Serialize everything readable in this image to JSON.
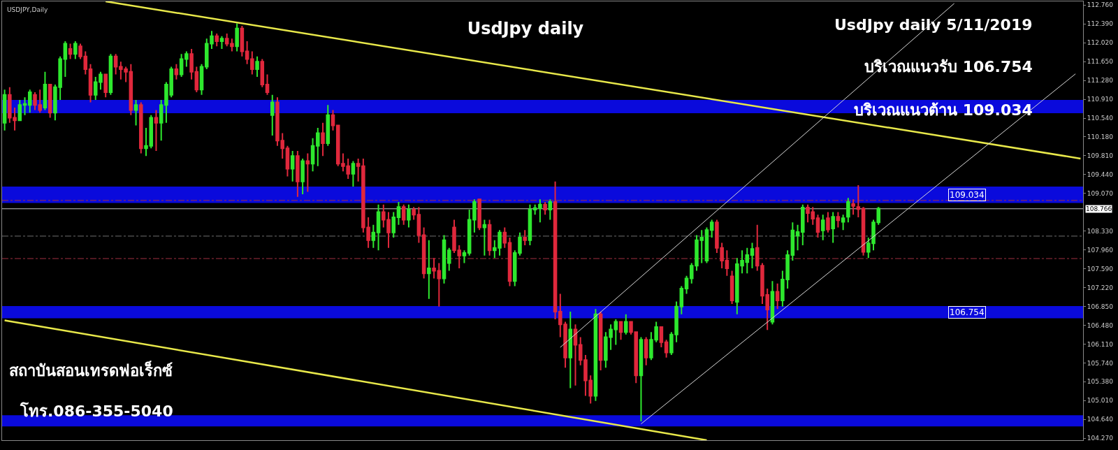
{
  "chart_data": {
    "type": "candlestick",
    "title": "UsdJpy daily",
    "annotations": [
      "USDJPY,Daily",
      "UsdJpy daily 5/11/2019",
      "บริเวณแนวรับ 106.754",
      "บริเวณแนวต้าน 109.034",
      "สถาบันสอนเทรดฟอเร็กซ์",
      "โทร.086-355-5040"
    ],
    "categories": [
      null,
      null,
      null,
      null,
      null,
      null,
      null,
      null,
      null,
      null,
      null,
      null,
      null,
      null,
      null,
      null,
      null,
      null,
      null,
      null,
      null,
      null,
      null,
      null,
      null,
      null,
      null,
      null,
      null,
      null,
      null,
      null,
      null,
      null,
      null,
      null,
      null,
      null,
      null,
      null,
      null,
      null,
      null,
      null,
      null,
      null,
      null,
      null,
      null,
      null,
      null,
      null,
      null,
      null,
      null,
      null,
      null,
      null,
      null,
      null,
      null,
      null,
      null,
      null,
      null,
      null,
      null,
      null,
      null,
      null,
      null,
      null,
      null,
      null,
      null,
      null,
      null,
      null,
      null,
      null,
      null,
      null,
      null,
      null,
      null,
      null,
      null,
      null,
      null,
      null,
      null,
      null,
      null,
      null,
      null,
      null,
      null,
      null,
      null,
      null,
      null,
      null,
      null,
      null,
      null,
      null,
      null,
      null,
      null,
      null,
      null,
      null,
      null,
      null,
      null,
      null,
      null,
      null,
      null,
      null,
      null,
      null,
      null,
      null,
      null,
      null,
      null,
      null,
      null,
      null,
      null,
      null,
      null,
      null,
      null,
      null,
      null,
      null,
      null,
      null,
      null,
      null,
      null,
      null,
      null,
      null,
      null,
      null,
      null,
      null,
      null,
      null,
      null,
      null,
      null,
      null,
      null,
      null,
      null,
      null,
      null,
      null,
      null,
      null,
      null,
      null,
      null,
      null,
      null,
      null,
      null,
      null,
      null,
      null,
      null,
      null,
      null,
      null,
      null,
      null,
      null,
      null,
      null,
      null,
      null,
      null,
      null,
      null,
      null,
      null,
      null,
      null,
      null,
      null,
      null,
      null,
      null,
      null,
      null,
      null,
      null,
      null,
      null,
      null,
      null,
      null,
      null,
      null,
      null,
      null,
      null,
      null,
      null,
      null
    ],
    "ohlc": [
      [
        110.45,
        111.1,
        110.3,
        111.0
      ],
      [
        111.0,
        111.15,
        110.45,
        110.55
      ],
      [
        110.55,
        110.75,
        110.3,
        110.5
      ],
      [
        110.5,
        110.9,
        110.5,
        110.8
      ],
      [
        110.8,
        110.95,
        110.6,
        110.82
      ],
      [
        110.8,
        111.1,
        110.65,
        111.05
      ],
      [
        111.0,
        111.05,
        110.7,
        110.8
      ],
      [
        110.8,
        111.1,
        110.65,
        110.7
      ],
      [
        110.75,
        111.45,
        110.7,
        111.2
      ],
      [
        111.2,
        111.2,
        110.55,
        110.65
      ],
      [
        110.65,
        111.2,
        110.5,
        111.15
      ],
      [
        111.15,
        111.75,
        110.9,
        111.7
      ],
      [
        111.7,
        112.05,
        111.35,
        112.0
      ],
      [
        111.9,
        112.0,
        111.7,
        111.8
      ],
      [
        111.8,
        112.05,
        111.7,
        112.0
      ],
      [
        111.95,
        112.0,
        111.7,
        111.75
      ],
      [
        111.75,
        111.85,
        111.4,
        111.5
      ],
      [
        111.5,
        111.6,
        110.85,
        111.0
      ],
      [
        111.0,
        111.35,
        110.9,
        111.25
      ],
      [
        111.25,
        111.45,
        111.1,
        111.4
      ],
      [
        111.4,
        111.4,
        110.95,
        111.05
      ],
      [
        111.05,
        111.8,
        111.0,
        111.75
      ],
      [
        111.75,
        111.8,
        111.4,
        111.55
      ],
      [
        111.55,
        111.65,
        111.3,
        111.5
      ],
      [
        111.5,
        111.55,
        111.25,
        111.45
      ],
      [
        111.45,
        111.6,
        110.6,
        110.7
      ],
      [
        110.7,
        110.9,
        110.4,
        110.8
      ],
      [
        110.8,
        110.85,
        109.85,
        109.95
      ],
      [
        109.95,
        110.35,
        109.8,
        110.0
      ],
      [
        110.0,
        110.6,
        109.95,
        110.55
      ],
      [
        110.55,
        110.7,
        109.9,
        110.45
      ],
      [
        110.45,
        110.9,
        110.1,
        110.8
      ],
      [
        110.8,
        111.25,
        110.45,
        111.2
      ],
      [
        111.0,
        111.55,
        110.95,
        111.5
      ],
      [
        111.5,
        111.6,
        111.3,
        111.4
      ],
      [
        111.4,
        111.8,
        111.35,
        111.7
      ],
      [
        111.7,
        111.85,
        111.55,
        111.8
      ],
      [
        111.8,
        111.9,
        111.3,
        111.45
      ],
      [
        111.45,
        111.55,
        111.05,
        111.1
      ],
      [
        111.1,
        111.6,
        111.0,
        111.55
      ],
      [
        111.55,
        112.1,
        111.5,
        112.0
      ],
      [
        112.0,
        112.25,
        111.9,
        112.15
      ],
      [
        112.15,
        112.2,
        111.95,
        112.05
      ],
      [
        112.05,
        112.15,
        111.9,
        112.1
      ],
      [
        112.1,
        112.2,
        111.95,
        112.0
      ],
      [
        112.0,
        112.1,
        111.85,
        111.95
      ],
      [
        111.95,
        112.4,
        111.85,
        112.3
      ],
      [
        112.3,
        112.35,
        111.75,
        111.85
      ],
      [
        111.85,
        112.05,
        111.6,
        111.7
      ],
      [
        111.7,
        111.85,
        111.4,
        111.5
      ],
      [
        111.5,
        111.75,
        111.35,
        111.65
      ],
      [
        111.65,
        111.7,
        111.15,
        111.2
      ],
      [
        111.2,
        111.4,
        111.0,
        111.05
      ],
      [
        110.6,
        111.0,
        110.2,
        110.85
      ],
      [
        110.85,
        110.95,
        110.0,
        110.1
      ],
      [
        110.1,
        110.25,
        109.75,
        109.95
      ],
      [
        109.95,
        110.0,
        109.4,
        109.55
      ],
      [
        109.55,
        109.9,
        109.3,
        109.8
      ],
      [
        109.8,
        109.9,
        109.0,
        109.3
      ],
      [
        109.3,
        109.75,
        109.05,
        109.7
      ],
      [
        109.7,
        109.85,
        109.1,
        109.65
      ],
      [
        109.65,
        110.15,
        109.5,
        110.0
      ],
      [
        110.0,
        110.35,
        109.6,
        110.25
      ],
      [
        110.25,
        110.45,
        109.8,
        110.05
      ],
      [
        110.05,
        110.8,
        110.0,
        110.6
      ],
      [
        110.6,
        110.7,
        110.3,
        110.4
      ],
      [
        110.4,
        110.4,
        109.6,
        109.65
      ],
      [
        109.65,
        109.85,
        109.5,
        109.6
      ],
      [
        109.6,
        109.75,
        109.35,
        109.45
      ],
      [
        109.45,
        109.7,
        109.2,
        109.65
      ],
      [
        109.65,
        109.75,
        109.3,
        109.6
      ],
      [
        109.6,
        109.75,
        108.3,
        108.4
      ],
      [
        108.4,
        108.6,
        108.0,
        108.15
      ],
      [
        108.15,
        108.45,
        108.0,
        108.3
      ],
      [
        108.3,
        108.85,
        107.95,
        108.7
      ],
      [
        108.7,
        108.85,
        108.4,
        108.55
      ],
      [
        108.55,
        108.7,
        108.0,
        108.3
      ],
      [
        108.3,
        108.7,
        108.2,
        108.6
      ],
      [
        108.6,
        108.9,
        108.45,
        108.8
      ],
      [
        108.8,
        108.85,
        108.45,
        108.55
      ],
      [
        108.55,
        108.85,
        108.4,
        108.75
      ],
      [
        108.75,
        108.8,
        108.55,
        108.65
      ],
      [
        108.65,
        108.8,
        108.1,
        108.25
      ],
      [
        108.25,
        108.4,
        107.4,
        107.5
      ],
      [
        107.5,
        108.15,
        107.0,
        107.6
      ],
      [
        107.6,
        107.8,
        107.4,
        107.55
      ],
      [
        107.55,
        107.7,
        106.85,
        107.4
      ],
      [
        107.4,
        108.25,
        107.3,
        108.15
      ],
      [
        107.7,
        108.0,
        107.55,
        107.95
      ],
      [
        108.4,
        108.55,
        107.9,
        107.95
      ],
      [
        107.95,
        108.05,
        107.6,
        107.85
      ],
      [
        107.85,
        107.95,
        107.7,
        107.9
      ],
      [
        107.9,
        108.75,
        107.85,
        108.55
      ],
      [
        108.55,
        108.95,
        108.3,
        108.9
      ],
      [
        108.95,
        108.95,
        108.35,
        108.4
      ],
      [
        108.4,
        108.55,
        107.85,
        108.45
      ],
      [
        108.45,
        108.55,
        107.85,
        107.95
      ],
      [
        107.95,
        108.15,
        107.8,
        108.0
      ],
      [
        108.0,
        108.35,
        107.85,
        108.3
      ],
      [
        108.3,
        108.4,
        108.0,
        108.1
      ],
      [
        108.1,
        108.2,
        107.25,
        107.35
      ],
      [
        107.35,
        107.95,
        107.25,
        107.9
      ],
      [
        107.9,
        108.3,
        107.85,
        108.2
      ],
      [
        108.2,
        108.35,
        108.05,
        108.15
      ],
      [
        108.15,
        108.85,
        108.05,
        108.75
      ],
      [
        108.75,
        108.85,
        108.65,
        108.78
      ],
      [
        108.78,
        108.95,
        108.5,
        108.85
      ],
      [
        108.85,
        108.9,
        108.65,
        108.75
      ],
      [
        108.75,
        108.95,
        108.55,
        108.9
      ],
      [
        108.9,
        109.3,
        106.6,
        106.75
      ],
      [
        106.75,
        107.1,
        106.25,
        106.5
      ],
      [
        106.5,
        106.55,
        105.65,
        105.85
      ],
      [
        105.85,
        106.75,
        105.25,
        106.4
      ],
      [
        106.4,
        106.5,
        105.3,
        106.1
      ],
      [
        106.1,
        106.25,
        105.7,
        105.8
      ],
      [
        105.8,
        105.9,
        105.1,
        105.4
      ],
      [
        105.4,
        105.5,
        104.95,
        105.1
      ],
      [
        105.1,
        106.8,
        105.0,
        106.7
      ],
      [
        106.7,
        106.75,
        105.6,
        105.8
      ],
      [
        105.8,
        106.35,
        105.65,
        106.25
      ],
      [
        106.25,
        106.5,
        106.0,
        106.4
      ],
      [
        106.4,
        106.6,
        106.1,
        106.55
      ],
      [
        106.55,
        106.55,
        106.2,
        106.35
      ],
      [
        106.35,
        106.7,
        106.3,
        106.55
      ],
      [
        106.55,
        106.55,
        106.3,
        106.35
      ],
      [
        106.35,
        106.35,
        105.35,
        105.5
      ],
      [
        105.5,
        106.25,
        104.6,
        106.2
      ],
      [
        106.2,
        106.25,
        105.7,
        105.85
      ],
      [
        105.85,
        106.35,
        105.8,
        106.2
      ],
      [
        106.2,
        106.55,
        106.15,
        106.45
      ],
      [
        106.45,
        106.45,
        106.05,
        106.15
      ],
      [
        106.15,
        106.2,
        105.85,
        105.95
      ],
      [
        105.95,
        106.35,
        105.9,
        106.3
      ],
      [
        106.3,
        106.95,
        106.15,
        106.85
      ],
      [
        106.85,
        107.25,
        106.7,
        107.2
      ],
      [
        107.2,
        107.45,
        107.1,
        107.4
      ],
      [
        107.4,
        107.7,
        107.3,
        107.65
      ],
      [
        107.65,
        108.25,
        107.55,
        108.15
      ],
      [
        108.15,
        108.35,
        107.7,
        108.2
      ],
      [
        107.75,
        108.4,
        107.7,
        108.35
      ],
      [
        108.35,
        108.55,
        108.2,
        108.5
      ],
      [
        108.5,
        108.55,
        107.9,
        108.0
      ],
      [
        108.0,
        108.1,
        107.6,
        107.75
      ],
      [
        107.75,
        107.95,
        107.45,
        107.6
      ],
      [
        107.44,
        107.55,
        106.9,
        106.97
      ],
      [
        106.94,
        107.8,
        106.7,
        107.68
      ],
      [
        107.65,
        107.95,
        107.5,
        107.75
      ],
      [
        107.72,
        108.0,
        107.5,
        107.86
      ],
      [
        107.86,
        108.1,
        107.6,
        107.98
      ],
      [
        108.0,
        108.45,
        107.55,
        107.65
      ],
      [
        107.65,
        107.7,
        106.9,
        107.06
      ],
      [
        107.08,
        107.2,
        106.39,
        106.79
      ],
      [
        106.55,
        107.35,
        106.5,
        107.14
      ],
      [
        107.14,
        107.3,
        106.8,
        106.97
      ],
      [
        106.97,
        107.55,
        106.85,
        107.38
      ],
      [
        107.38,
        107.95,
        107.2,
        107.86
      ],
      [
        107.86,
        108.5,
        107.75,
        108.34
      ],
      [
        108.24,
        108.45,
        107.95,
        108.31
      ],
      [
        108.31,
        108.85,
        108.05,
        108.79
      ],
      [
        108.79,
        108.85,
        108.5,
        108.68
      ],
      [
        108.7,
        108.8,
        108.45,
        108.57
      ],
      [
        108.58,
        108.65,
        108.2,
        108.31
      ],
      [
        108.34,
        108.65,
        108.15,
        108.54
      ],
      [
        108.58,
        108.7,
        108.3,
        108.36
      ],
      [
        108.38,
        108.7,
        108.1,
        108.61
      ],
      [
        108.61,
        108.7,
        108.4,
        108.54
      ],
      [
        108.51,
        108.65,
        108.35,
        108.58
      ],
      [
        108.61,
        108.98,
        108.5,
        108.9
      ],
      [
        108.86,
        108.95,
        108.65,
        108.82
      ],
      [
        108.8,
        109.23,
        108.6,
        108.76
      ],
      [
        108.77,
        108.8,
        107.85,
        107.92
      ],
      [
        107.92,
        108.2,
        107.8,
        108.09
      ],
      [
        108.09,
        108.55,
        107.95,
        108.5
      ],
      [
        108.5,
        108.8,
        108.45,
        108.77
      ],
      null,
      null,
      null,
      null,
      null,
      null,
      null,
      null,
      null,
      null,
      null,
      null,
      null,
      null,
      null,
      null,
      null,
      null,
      null,
      null,
      null,
      null,
      null,
      null,
      null,
      null,
      null,
      null,
      null,
      null,
      null,
      null,
      null,
      null,
      null,
      null,
      null,
      null,
      null,
      null
    ],
    "series": [
      {
        "type": "line",
        "color": "#e8e84a",
        "values": [
          null,
          null,
          null,
          null,
          null,
          null,
          null,
          null,
          null,
          null,
          null,
          null,
          null,
          null,
          null,
          null,
          null,
          null,
          null,
          null,
          112.83,
          null,
          null,
          null,
          null,
          null,
          null,
          null,
          null,
          null,
          null,
          null,
          null,
          null,
          null,
          null,
          null,
          null,
          null,
          null,
          null,
          null,
          null,
          null,
          null,
          null,
          null,
          null,
          null,
          null,
          null,
          null,
          null,
          null,
          null,
          null,
          null,
          null,
          null,
          null,
          null,
          null,
          null,
          null,
          null,
          null,
          null,
          null,
          null,
          null,
          null,
          null,
          null,
          null,
          null,
          null,
          null,
          null,
          null,
          null,
          null,
          null,
          null,
          null,
          null,
          null,
          null,
          null,
          null,
          null,
          null,
          null,
          null,
          null,
          null,
          null,
          null,
          null,
          null,
          null,
          null,
          null,
          null,
          null,
          null,
          null,
          null,
          null,
          null,
          null,
          null,
          null,
          null,
          null,
          null,
          null,
          null,
          null,
          null,
          null,
          null,
          null,
          null,
          null,
          null,
          null,
          null,
          null,
          null,
          null,
          null,
          null,
          null,
          null,
          null,
          null,
          null,
          null,
          null,
          null,
          null,
          null,
          null,
          null,
          null,
          null,
          null,
          null,
          null,
          null,
          null,
          null,
          null,
          null,
          null,
          null,
          null,
          null,
          null,
          null,
          null,
          null,
          null,
          null,
          null,
          null,
          null,
          null,
          null,
          null,
          null,
          null,
          null,
          null,
          null,
          null,
          null,
          null,
          null,
          null,
          null,
          null,
          null,
          null,
          null,
          null,
          null,
          null,
          null,
          null,
          null,
          null,
          null,
          null,
          null,
          null,
          null,
          null,
          null,
          null,
          null,
          null,
          null,
          null,
          null,
          null,
          null,
          null,
          null,
          null,
          null,
          null,
          null,
          109.75
        ]
      },
      {
        "type": "line",
        "color": "#e8e84a",
        "values": [
          106.58,
          null,
          null,
          null,
          null,
          null,
          null,
          null,
          null,
          null,
          null,
          null,
          null,
          null,
          null,
          null,
          null,
          null,
          null,
          null,
          null,
          null,
          null,
          null,
          null,
          null,
          null,
          null,
          null,
          null,
          null,
          null,
          null,
          null,
          null,
          null,
          null,
          null,
          null,
          null,
          null,
          null,
          null,
          null,
          null,
          null,
          null,
          null,
          null,
          null,
          null,
          null,
          null,
          null,
          null,
          null,
          null,
          null,
          null,
          null,
          null,
          null,
          null,
          null,
          null,
          null,
          null,
          null,
          null,
          null,
          null,
          null,
          null,
          null,
          null,
          null,
          null,
          null,
          null,
          null,
          null,
          null,
          null,
          null,
          null,
          null,
          null,
          null,
          null,
          null,
          null,
          null,
          null,
          null,
          null,
          null,
          null,
          null,
          null,
          null,
          null,
          null,
          null,
          null,
          null,
          null,
          null,
          null,
          null,
          null,
          null,
          null,
          null,
          null,
          null,
          null,
          null,
          null,
          null,
          null,
          null,
          null,
          null,
          null,
          null,
          null,
          null,
          null,
          null,
          null,
          null,
          null,
          null,
          null,
          null,
          null,
          null,
          null,
          null,
          104.23,
          null,
          null,
          null,
          null,
          null,
          null,
          null,
          null,
          null,
          null,
          null,
          null,
          null,
          null,
          null,
          null,
          null,
          null,
          null,
          null,
          null,
          null,
          null,
          null,
          null,
          null,
          null,
          null,
          null,
          null,
          null,
          null,
          null,
          null,
          null,
          null,
          null,
          null,
          null,
          null,
          null,
          null,
          null,
          null,
          null,
          null,
          null,
          null,
          null,
          null,
          null,
          null,
          null,
          null,
          null,
          null,
          null,
          null,
          null,
          null,
          null,
          null,
          null,
          null,
          null,
          null,
          null,
          null,
          null,
          null,
          null,
          null,
          null,
          null
        ]
      },
      {
        "type": "line",
        "color": "#d8d8d8",
        "values": [
          null,
          null,
          null,
          null,
          null,
          null,
          null,
          null,
          null,
          null,
          null,
          null,
          null,
          null,
          null,
          null,
          null,
          null,
          null,
          null,
          null,
          null,
          null,
          null,
          null,
          null,
          null,
          null,
          null,
          null,
          null,
          null,
          null,
          null,
          null,
          null,
          null,
          null,
          null,
          null,
          null,
          null,
          null,
          null,
          null,
          null,
          null,
          null,
          null,
          null,
          null,
          null,
          null,
          null,
          null,
          null,
          null,
          null,
          null,
          null,
          null,
          null,
          null,
          null,
          null,
          null,
          null,
          null,
          null,
          null,
          null,
          null,
          null,
          null,
          null,
          null,
          null,
          null,
          null,
          null,
          null,
          null,
          null,
          null,
          null,
          null,
          null,
          null,
          null,
          null,
          null,
          null,
          null,
          null,
          null,
          null,
          null,
          null,
          null,
          null,
          null,
          null,
          null,
          null,
          null,
          null,
          null,
          null,
          null,
          null,
          106.05,
          null,
          null,
          null,
          null,
          null,
          null,
          null,
          null,
          null,
          null,
          null,
          null,
          null,
          null,
          null,
          null,
          null,
          null,
          null,
          null,
          null,
          null,
          null,
          null,
          null,
          null,
          null,
          null,
          null,
          null,
          null,
          null,
          null,
          null,
          null,
          null,
          null,
          null,
          null,
          null,
          null,
          null,
          null,
          null,
          null,
          null,
          null,
          null,
          null,
          null,
          null,
          null,
          null,
          null,
          null,
          null,
          null,
          null,
          null,
          null,
          null,
          null,
          null,
          null,
          null,
          null,
          null,
          null,
          null,
          null,
          null,
          null,
          null,
          null,
          null,
          null,
          null,
          112.79,
          null,
          null,
          null,
          null,
          null,
          null,
          null,
          null,
          null,
          null,
          null,
          null,
          null,
          null,
          null,
          null,
          null,
          null,
          null,
          null,
          null,
          null,
          null,
          null,
          null
        ]
      },
      {
        "type": "line",
        "color": "#d8d8d8",
        "values": [
          null,
          null,
          null,
          null,
          null,
          null,
          null,
          null,
          null,
          null,
          null,
          null,
          null,
          null,
          null,
          null,
          null,
          null,
          null,
          null,
          null,
          null,
          null,
          null,
          null,
          null,
          null,
          null,
          null,
          null,
          null,
          null,
          null,
          null,
          null,
          null,
          null,
          null,
          null,
          null,
          null,
          null,
          null,
          null,
          null,
          null,
          null,
          null,
          null,
          null,
          null,
          null,
          null,
          null,
          null,
          null,
          null,
          null,
          null,
          null,
          null,
          null,
          null,
          null,
          null,
          null,
          null,
          null,
          null,
          null,
          null,
          null,
          null,
          null,
          null,
          null,
          null,
          null,
          null,
          null,
          null,
          null,
          null,
          null,
          null,
          null,
          null,
          null,
          null,
          null,
          null,
          null,
          null,
          null,
          null,
          null,
          null,
          null,
          null,
          null,
          null,
          null,
          null,
          null,
          null,
          null,
          null,
          null,
          null,
          null,
          null,
          null,
          null,
          null,
          null,
          null,
          null,
          null,
          null,
          null,
          null,
          null,
          null,
          null,
          null,
          null,
          104.55,
          null,
          null,
          null,
          null,
          null,
          null,
          null,
          null,
          null,
          null,
          null,
          null,
          null,
          null,
          null,
          null,
          null,
          null,
          null,
          null,
          null,
          null,
          null,
          null,
          null,
          null,
          null,
          null,
          null,
          null,
          null,
          null,
          null,
          null,
          null,
          null,
          null,
          null,
          null,
          null,
          null,
          null,
          null,
          null,
          null,
          null,
          null,
          null,
          null,
          null,
          null,
          null,
          null,
          null,
          null,
          null,
          null,
          null,
          null,
          null,
          null,
          null,
          null,
          null,
          null,
          null,
          null,
          null,
          null,
          null,
          null,
          null,
          null,
          null,
          null,
          null,
          null,
          null,
          null,
          null,
          null,
          null,
          null,
          null,
          null,
          111.41,
          null
        ]
      }
    ],
    "ylim": [
      104.23,
      112.83
    ],
    "yticks": [
      {
        "value": 104.27,
        "label": "104.270"
      },
      {
        "value": 104.64,
        "label": "104.640"
      },
      {
        "value": 105.01,
        "label": "105.010"
      },
      {
        "value": 105.38,
        "label": "105.380"
      },
      {
        "value": 105.74,
        "label": "105.740"
      },
      {
        "value": 106.11,
        "label": "106.110"
      },
      {
        "value": 106.48,
        "label": "106.480"
      },
      {
        "value": 106.85,
        "label": "106.850"
      },
      {
        "value": 107.22,
        "label": "107.220"
      },
      {
        "value": 107.59,
        "label": "107.590"
      },
      {
        "value": 107.96,
        "label": "107.960"
      },
      {
        "value": 108.33,
        "label": "108.330"
      },
      {
        "value": 109.07,
        "label": "109.070"
      },
      {
        "value": 109.44,
        "label": "109.440"
      },
      {
        "value": 109.81,
        "label": "109.810"
      },
      {
        "value": 110.18,
        "label": "110.180"
      },
      {
        "value": 110.54,
        "label": "110.540"
      },
      {
        "value": 110.91,
        "label": "110.910"
      },
      {
        "value": 111.28,
        "label": "111.280"
      },
      {
        "value": 111.65,
        "label": "111.650"
      },
      {
        "value": 112.02,
        "label": "112.020"
      },
      {
        "value": 112.39,
        "label": "112.390"
      },
      {
        "value": 112.76,
        "label": "112.760"
      }
    ],
    "bands": [
      {
        "axis": "y",
        "from": 110.64,
        "to": 110.9,
        "color": "#0a0adc"
      },
      {
        "axis": "y",
        "from": 108.88,
        "to": 109.2,
        "label": "109.034",
        "color": "#0a0adc"
      },
      {
        "axis": "y",
        "from": 106.62,
        "to": 106.86,
        "label": "106.754",
        "color": "#0a0adc"
      },
      {
        "axis": "y",
        "from": 104.5,
        "to": 104.72,
        "color": "#0a0adc"
      }
    ],
    "ref_lines": [
      {
        "axis": "y",
        "value": 108.766,
        "label": "108.766",
        "color": "#c8c8c8",
        "line_style": "solid"
      },
      {
        "axis": "y",
        "value": 108.93,
        "color": "#a03040",
        "line_style": "dashed"
      },
      {
        "axis": "y",
        "value": 108.23,
        "color": "#707070",
        "line_style": "dashed"
      },
      {
        "axis": "y",
        "value": 107.79,
        "color": "#a03040",
        "line_style": "dashed"
      }
    ],
    "tick_labels": "y",
    "grid": false
  }
}
